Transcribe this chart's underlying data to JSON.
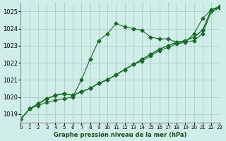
{
  "title": "Graphe pression niveau de la mer (hPa)",
  "bg_color": "#d0eee8",
  "grid_color": "#b0d0cc",
  "line_color": "#1a6b2a",
  "marker_color": "#1a6b2a",
  "xlim": [
    0,
    23
  ],
  "ylim": [
    1018.5,
    1025.5
  ],
  "yticks": [
    1019,
    1020,
    1021,
    1022,
    1023,
    1024,
    1025
  ],
  "xtick_labels": [
    "0",
    "1",
    "2",
    "3",
    "4",
    "5",
    "6",
    "7",
    "8",
    "9",
    "10",
    "11",
    "12",
    "13",
    "14",
    "15",
    "16",
    "17",
    "18",
    "19",
    "20",
    "21",
    "22",
    "23"
  ],
  "series": [
    [
      1018.7,
      1019.3,
      1019.5,
      1019.7,
      1019.8,
      1019.9,
      1020.0,
      1021.0,
      1022.2,
      1023.3,
      1023.7,
      1024.3,
      1024.1,
      1024.0,
      1023.9,
      1023.5,
      1023.4,
      1023.4,
      1023.2,
      1023.2,
      1023.7,
      1024.6,
      1025.1,
      1025.3
    ],
    [
      1018.7,
      1019.3,
      1019.6,
      1019.9,
      1020.1,
      1020.2,
      1020.1,
      1020.3,
      1020.5,
      1020.8,
      1021.0,
      1021.3,
      1021.6,
      1021.9,
      1022.1,
      1022.4,
      1022.7,
      1022.9,
      1023.1,
      1023.2,
      1023.3,
      1023.7,
      1025.0,
      1025.2
    ],
    [
      1018.7,
      1019.3,
      1019.6,
      1019.9,
      1020.1,
      1020.2,
      1020.1,
      1020.3,
      1020.5,
      1020.8,
      1021.0,
      1021.3,
      1021.6,
      1021.9,
      1022.2,
      1022.5,
      1022.8,
      1023.0,
      1023.2,
      1023.3,
      1023.5,
      1023.9,
      1025.1,
      1025.2
    ],
    [
      1018.7,
      1019.3,
      1019.6,
      1019.9,
      1020.1,
      1020.2,
      1020.1,
      1020.3,
      1020.5,
      1020.8,
      1021.0,
      1021.3,
      1021.6,
      1021.9,
      1022.2,
      1022.5,
      1022.8,
      1023.0,
      1023.2,
      1023.3,
      1023.5,
      1023.9,
      1025.1,
      1025.3
    ]
  ]
}
